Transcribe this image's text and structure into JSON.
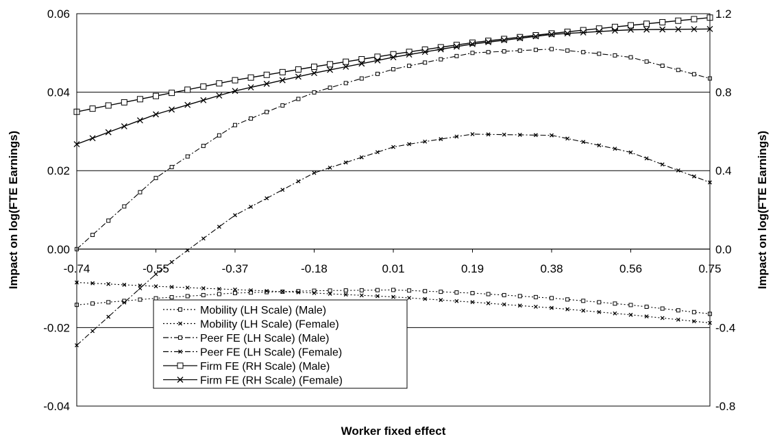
{
  "chart_data": {
    "type": "line",
    "xlabel": "Worker fixed effect",
    "ylabel_left": "Impact on log(FTE Earnings)",
    "ylabel_right": "Impact on log(FTE Earnings)",
    "x_tick_labels": [
      "-0.74",
      "-0.55",
      "-0.37",
      "-0.18",
      "0.01",
      "0.19",
      "0.38",
      "0.56",
      "0.75"
    ],
    "y_left_ticks": [
      "0.06",
      "0.04",
      "0.02",
      "0.00",
      "-0.02",
      "-0.04"
    ],
    "y_right_ticks": [
      "1.2",
      "0.8",
      "0.4",
      "0.0",
      "-0.4",
      "-0.8"
    ],
    "ylim_left": [
      -0.04,
      0.06
    ],
    "ylim_right": [
      -0.8,
      1.2
    ],
    "xlim": [
      -0.74,
      0.75
    ],
    "grid": "horizontal",
    "legend_position": "bottom-left",
    "series": [
      {
        "name": "Mobility (LH Scale) (Male)",
        "axis": "left",
        "dash": "dot",
        "marker": "square",
        "points": [
          [
            -0.74,
            -0.0142
          ],
          [
            -0.55,
            -0.0125
          ],
          [
            -0.37,
            -0.0112
          ],
          [
            -0.18,
            -0.0106
          ],
          [
            0.01,
            -0.0104
          ],
          [
            0.19,
            -0.0112
          ],
          [
            0.38,
            -0.0125
          ],
          [
            0.56,
            -0.0142
          ],
          [
            0.75,
            -0.0165
          ]
        ]
      },
      {
        "name": "Mobility (LH Scale) (Female)",
        "axis": "left",
        "dash": "dot",
        "marker": "x",
        "points": [
          [
            -0.74,
            -0.0085
          ],
          [
            -0.55,
            -0.0095
          ],
          [
            -0.37,
            -0.0103
          ],
          [
            -0.18,
            -0.0112
          ],
          [
            0.01,
            -0.0122
          ],
          [
            0.19,
            -0.0135
          ],
          [
            0.38,
            -0.015
          ],
          [
            0.56,
            -0.0167
          ],
          [
            0.75,
            -0.0188
          ]
        ]
      },
      {
        "name": "Peer FE (LH Scale) (Male)",
        "axis": "left",
        "dash": "dashdot",
        "marker": "square",
        "points": [
          [
            -0.74,
            0.0
          ],
          [
            -0.55,
            0.0185
          ],
          [
            -0.37,
            0.0315
          ],
          [
            -0.18,
            0.04
          ],
          [
            0.01,
            0.046
          ],
          [
            0.19,
            0.05
          ],
          [
            0.38,
            0.051
          ],
          [
            0.56,
            0.049
          ],
          [
            0.75,
            0.0435
          ]
        ]
      },
      {
        "name": "Peer FE (LH Scale) (Female)",
        "axis": "left",
        "dash": "dashdot",
        "marker": "x",
        "points": [
          [
            -0.74,
            -0.0245
          ],
          [
            -0.55,
            -0.006
          ],
          [
            -0.37,
            0.0085
          ],
          [
            -0.18,
            0.0195
          ],
          [
            0.01,
            0.0262
          ],
          [
            0.19,
            0.0293
          ],
          [
            0.38,
            0.029
          ],
          [
            0.56,
            0.0248
          ],
          [
            0.75,
            0.017
          ]
        ]
      },
      {
        "name": "Firm FE (RH Scale) (Male)",
        "axis": "right",
        "dash": "solid",
        "marker": "square",
        "points": [
          [
            -0.74,
            0.7
          ],
          [
            -0.55,
            0.782
          ],
          [
            -0.37,
            0.86
          ],
          [
            -0.18,
            0.93
          ],
          [
            0.01,
            0.995
          ],
          [
            0.19,
            1.052
          ],
          [
            0.38,
            1.1
          ],
          [
            0.56,
            1.14
          ],
          [
            0.75,
            1.18
          ]
        ]
      },
      {
        "name": "Firm FE (RH Scale) (Female)",
        "axis": "right",
        "dash": "solid",
        "marker": "x",
        "points": [
          [
            -0.74,
            0.535
          ],
          [
            -0.55,
            0.69
          ],
          [
            -0.37,
            0.805
          ],
          [
            -0.18,
            0.898
          ],
          [
            0.01,
            0.98
          ],
          [
            0.19,
            1.045
          ],
          [
            0.38,
            1.095
          ],
          [
            0.56,
            1.118
          ],
          [
            0.75,
            1.122
          ]
        ]
      }
    ]
  }
}
